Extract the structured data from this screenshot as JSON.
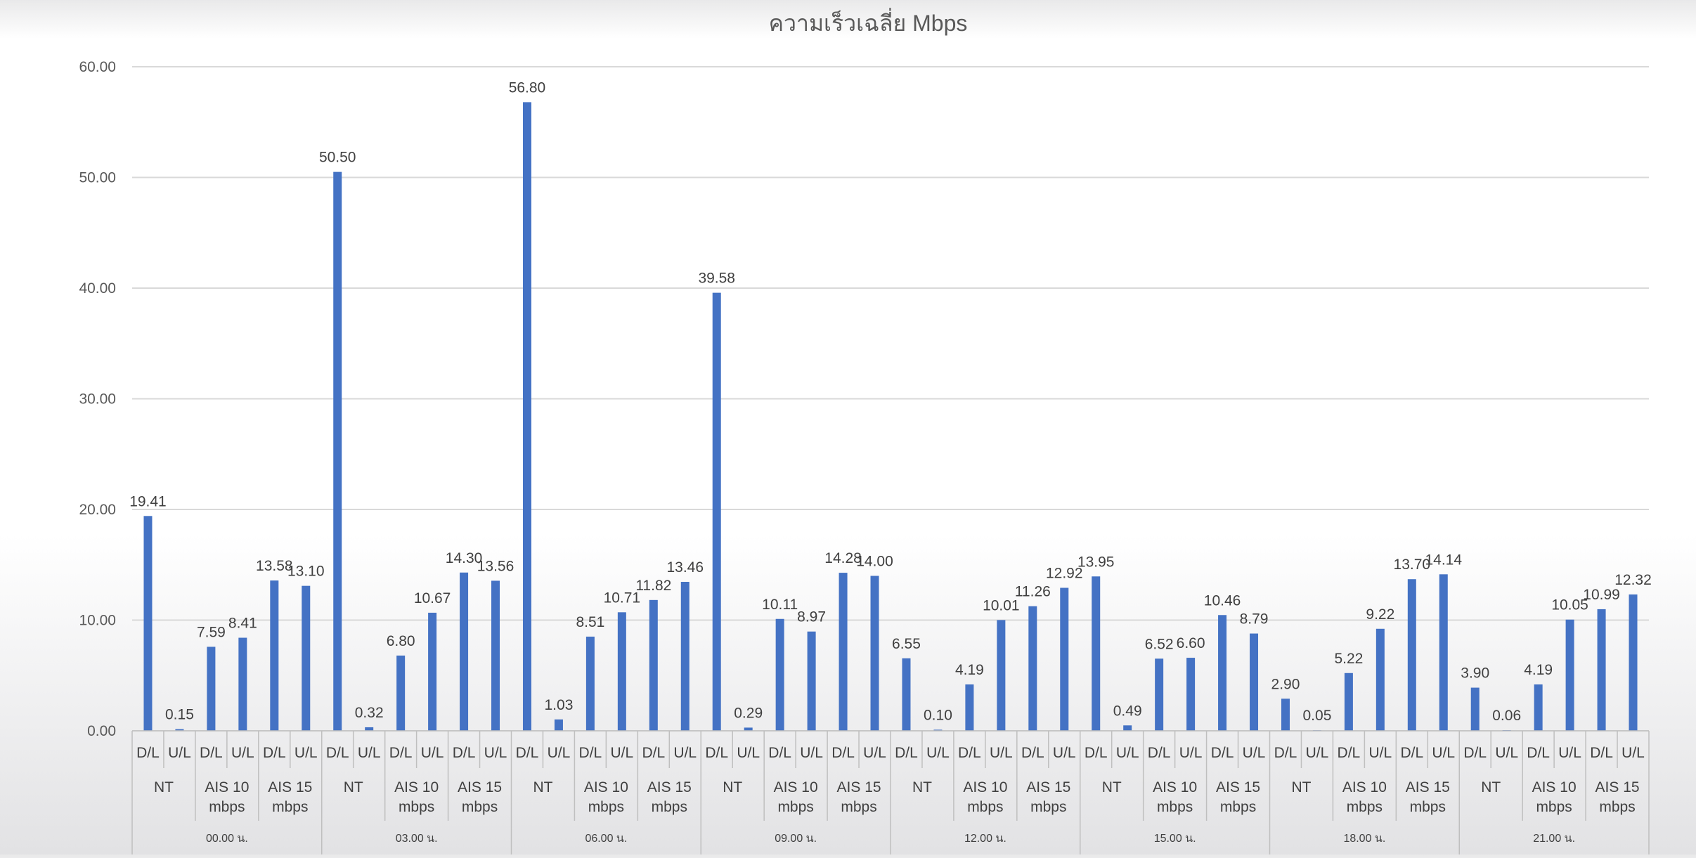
{
  "chart_data": {
    "type": "bar",
    "title": "ความเร็วเฉลี่ย Mbps",
    "ylim": [
      0,
      60
    ],
    "yticks": [
      "0.00",
      "10.00",
      "20.00",
      "30.00",
      "40.00",
      "50.00",
      "60.00"
    ],
    "grid": true,
    "legend": "none",
    "bar_color": "#4472c4",
    "series_labels": [
      "D/L",
      "U/L"
    ],
    "groups": [
      {
        "time": "00.00 น.",
        "providers": [
          {
            "name": [
              "NT"
            ],
            "values": [
              19.41,
              0.15
            ]
          },
          {
            "name": [
              "AIS 10",
              "mbps"
            ],
            "values": [
              7.59,
              8.41
            ]
          },
          {
            "name": [
              "AIS 15",
              "mbps"
            ],
            "values": [
              13.58,
              13.1
            ]
          }
        ]
      },
      {
        "time": "03.00 น.",
        "providers": [
          {
            "name": [
              "NT"
            ],
            "values": [
              50.5,
              0.32
            ]
          },
          {
            "name": [
              "AIS 10",
              "mbps"
            ],
            "values": [
              6.8,
              10.67
            ]
          },
          {
            "name": [
              "AIS 15",
              "mbps"
            ],
            "values": [
              14.3,
              13.56
            ]
          }
        ]
      },
      {
        "time": "06.00 น.",
        "providers": [
          {
            "name": [
              "NT"
            ],
            "values": [
              56.8,
              1.03
            ]
          },
          {
            "name": [
              "AIS 10",
              "mbps"
            ],
            "values": [
              8.51,
              10.71
            ]
          },
          {
            "name": [
              "AIS 15",
              "mbps"
            ],
            "values": [
              11.82,
              13.46
            ]
          }
        ]
      },
      {
        "time": "09.00 น.",
        "providers": [
          {
            "name": [
              "NT"
            ],
            "values": [
              39.58,
              0.29
            ]
          },
          {
            "name": [
              "AIS 10",
              "mbps"
            ],
            "values": [
              10.11,
              8.97
            ]
          },
          {
            "name": [
              "AIS 15",
              "mbps"
            ],
            "values": [
              14.28,
              14.0
            ]
          }
        ]
      },
      {
        "time": "12.00 น.",
        "providers": [
          {
            "name": [
              "NT"
            ],
            "values": [
              6.55,
              0.1
            ]
          },
          {
            "name": [
              "AIS 10",
              "mbps"
            ],
            "values": [
              4.19,
              10.01
            ]
          },
          {
            "name": [
              "AIS 15",
              "mbps"
            ],
            "values": [
              11.26,
              12.92
            ]
          }
        ]
      },
      {
        "time": "15.00 น.",
        "providers": [
          {
            "name": [
              "NT"
            ],
            "values": [
              13.95,
              0.49
            ]
          },
          {
            "name": [
              "AIS 10",
              "mbps"
            ],
            "values": [
              6.52,
              6.6
            ]
          },
          {
            "name": [
              "AIS 15",
              "mbps"
            ],
            "values": [
              10.46,
              8.79
            ]
          }
        ]
      },
      {
        "time": "18.00 น.",
        "providers": [
          {
            "name": [
              "NT"
            ],
            "values": [
              2.9,
              0.05
            ]
          },
          {
            "name": [
              "AIS 10",
              "mbps"
            ],
            "values": [
              5.22,
              9.22
            ]
          },
          {
            "name": [
              "AIS 15",
              "mbps"
            ],
            "values": [
              13.7,
              14.14
            ]
          }
        ]
      },
      {
        "time": "21.00 น.",
        "providers": [
          {
            "name": [
              "NT"
            ],
            "values": [
              3.9,
              0.06
            ]
          },
          {
            "name": [
              "AIS 10",
              "mbps"
            ],
            "values": [
              4.19,
              10.05
            ]
          },
          {
            "name": [
              "AIS 15",
              "mbps"
            ],
            "values": [
              10.99,
              12.32
            ]
          }
        ]
      }
    ]
  }
}
